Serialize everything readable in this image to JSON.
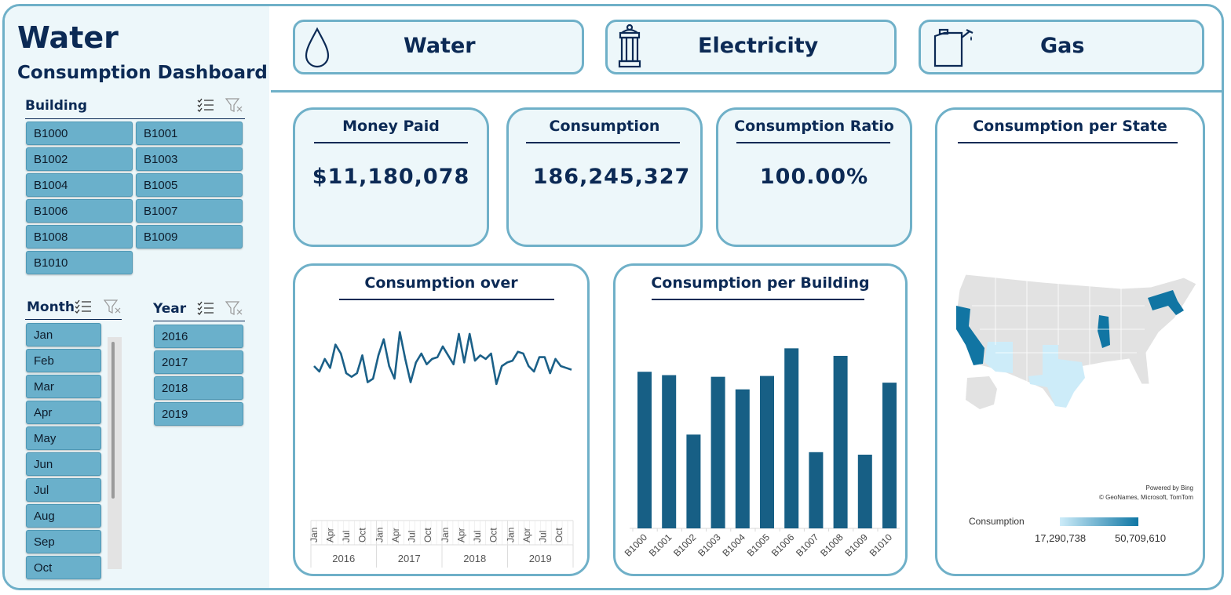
{
  "header": {
    "title": "Water",
    "subtitle": "Consumption Dashboard"
  },
  "nav": [
    {
      "label": "Water"
    },
    {
      "label": "Electricity"
    },
    {
      "label": "Gas"
    }
  ],
  "slicers": {
    "building": {
      "title": "Building",
      "items": [
        "B1000",
        "B1001",
        "B1002",
        "B1003",
        "B1004",
        "B1005",
        "B1006",
        "B1007",
        "B1008",
        "B1009",
        "B1010"
      ]
    },
    "month": {
      "title": "Month",
      "items": [
        "Jan",
        "Feb",
        "Mar",
        "Apr",
        "May",
        "Jun",
        "Jul",
        "Aug",
        "Sep",
        "Oct"
      ]
    },
    "year": {
      "title": "Year",
      "items": [
        "2016",
        "2017",
        "2018",
        "2019"
      ]
    }
  },
  "kpis": {
    "money": {
      "title": "Money Paid",
      "value": "$11,180,078"
    },
    "consumption": {
      "title": "Consumption",
      "value": "186,245,327"
    },
    "ratio": {
      "title": "Consumption Ratio",
      "value": "100.00%"
    }
  },
  "map": {
    "title": "Consumption per State",
    "attribution1": "Powered by Bing",
    "attribution2": "© GeoNames, Microsoft, TomTom",
    "legend_label": "Consumption",
    "legend_min": "17,290,738",
    "legend_max": "50,709,610"
  },
  "colors": {
    "accent": "#6fb0c8",
    "navy": "#0c2a55",
    "chip": "#6ab0cb",
    "series": "#1b6088",
    "bar": "#175f85",
    "panel": "#edf7fa"
  },
  "chart_data": [
    {
      "type": "line",
      "title": "Consumption over",
      "x_month_labels": [
        "Jan",
        "Apr",
        "Jul",
        "Oct"
      ],
      "x_year_labels": [
        "2016",
        "2017",
        "2018",
        "2019"
      ],
      "series": [
        {
          "values": [
            3.9,
            3.6,
            4.3,
            3.8,
            5.1,
            4.6,
            3.5,
            3.3,
            3.5,
            4.5,
            3.0,
            3.2,
            4.5,
            5.4,
            3.9,
            3.2,
            5.8,
            4.3,
            3.0,
            4.1,
            4.6,
            4.0,
            4.3,
            4.4,
            5.0,
            4.5,
            4.0,
            5.7,
            4.1,
            5.7,
            4.2,
            4.5,
            4.3,
            4.6,
            2.9,
            3.9,
            4.1,
            4.2,
            4.7,
            4.6,
            3.9,
            3.6,
            4.4,
            4.4,
            3.5,
            4.3,
            3.9,
            3.8,
            3.7
          ]
        }
      ]
    },
    {
      "type": "bar",
      "title": "Consumption per Building",
      "categories": [
        "B1000",
        "B1001",
        "B1002",
        "B1003",
        "B1004",
        "B1005",
        "B1006",
        "B1007",
        "B1008",
        "B1009",
        "B1010"
      ],
      "values": [
        18.7,
        18.3,
        11.2,
        18.1,
        16.6,
        18.2,
        21.5,
        9.1,
        20.6,
        8.8,
        17.4
      ],
      "ylim": [
        0,
        22
      ]
    }
  ]
}
